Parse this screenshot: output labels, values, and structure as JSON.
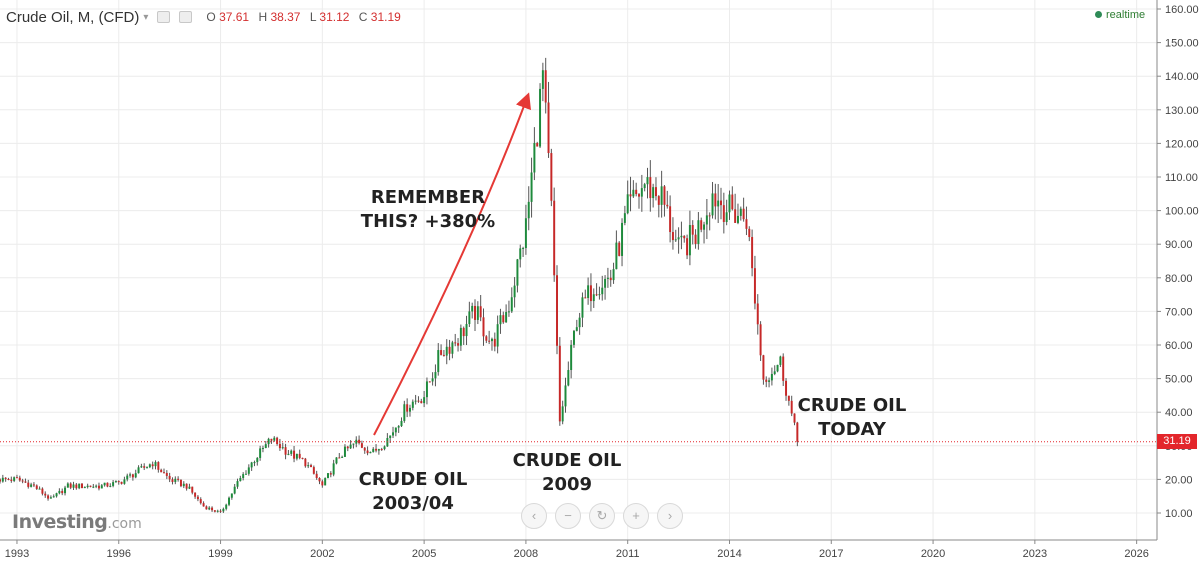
{
  "header": {
    "title": "Crude Oil, M, (CFD)",
    "ohlc": [
      {
        "label": "O",
        "value": "37.61"
      },
      {
        "label": "H",
        "value": "38.37"
      },
      {
        "label": "L",
        "value": "31.12"
      },
      {
        "label": "C",
        "value": "31.19"
      }
    ],
    "realtime_label": "realtime"
  },
  "annotations": {
    "remember": "REMEMBER\nTHIS? +380%",
    "crude_2003": "CRUDE OIL\n2003/04",
    "crude_2009": "CRUDE OIL\n2009",
    "crude_today": "CRUDE OIL\nTODAY"
  },
  "logo": {
    "name": "Investing",
    "suffix": ".com"
  },
  "nav_buttons": [
    {
      "icon": "chevron-left-icon",
      "glyph": "‹"
    },
    {
      "icon": "zoom-out-icon",
      "glyph": "−"
    },
    {
      "icon": "reset-icon",
      "glyph": "↻"
    },
    {
      "icon": "zoom-in-icon",
      "glyph": "+"
    },
    {
      "icon": "chevron-right-icon",
      "glyph": "›"
    }
  ],
  "colors": {
    "up": "#1e8a3c",
    "down": "#c62828",
    "wick": "#555555",
    "grid": "#ececec",
    "price_line": "#e3262b",
    "arrow": "#e53935"
  },
  "chart_data": {
    "type": "candlestick",
    "title": "Crude Oil, M, (CFD)",
    "y_axis_side": "right",
    "ylim": [
      0,
      160
    ],
    "y_ticks": [
      "10.00",
      "20.00",
      "30.00",
      "40.00",
      "50.00",
      "60.00",
      "70.00",
      "80.00",
      "90.00",
      "100.00",
      "110.00",
      "120.00",
      "130.00",
      "140.00",
      "150.00",
      "160.00"
    ],
    "xlim": [
      1992.5,
      2026.6
    ],
    "x_ticks": [
      "1993",
      "1996",
      "1999",
      "2002",
      "2005",
      "2008",
      "2011",
      "2014",
      "2017",
      "2020",
      "2023",
      "2026"
    ],
    "grid": true,
    "last_price": "31.19",
    "series": [
      {
        "x": [
          1992.5,
          1993.0,
          1993.5,
          1994.0,
          1994.5,
          1995.0,
          1995.5,
          1996.0,
          1996.5,
          1997.0,
          1997.5,
          1998.0,
          1998.5,
          1999.0,
          1999.5,
          2000.0,
          2000.5,
          2001.0,
          2001.5,
          2002.0,
          2002.5,
          2003.0,
          2003.5,
          2004.0,
          2004.5,
          2005.0,
          2005.5,
          2006.0,
          2006.5,
          2007.0,
          2007.5,
          2008.0,
          2008.5,
          2008.75,
          2009.0,
          2009.5,
          2010.0,
          2010.5,
          2011.0,
          2011.5,
          2012.0,
          2012.5,
          2013.0,
          2013.5,
          2014.0,
          2014.5,
          2015.0,
          2015.5,
          2016.0
        ],
        "close": [
          20,
          20,
          18,
          14,
          18,
          18,
          18,
          19,
          22,
          25,
          20,
          18,
          12,
          10,
          19,
          26,
          32,
          28,
          25,
          18,
          27,
          31,
          28,
          33,
          42,
          45,
          58,
          62,
          70,
          60,
          72,
          95,
          140,
          100,
          37,
          68,
          78,
          80,
          100,
          108,
          104,
          88,
          93,
          105,
          100,
          98,
          50,
          55,
          31.19
        ]
      }
    ]
  }
}
